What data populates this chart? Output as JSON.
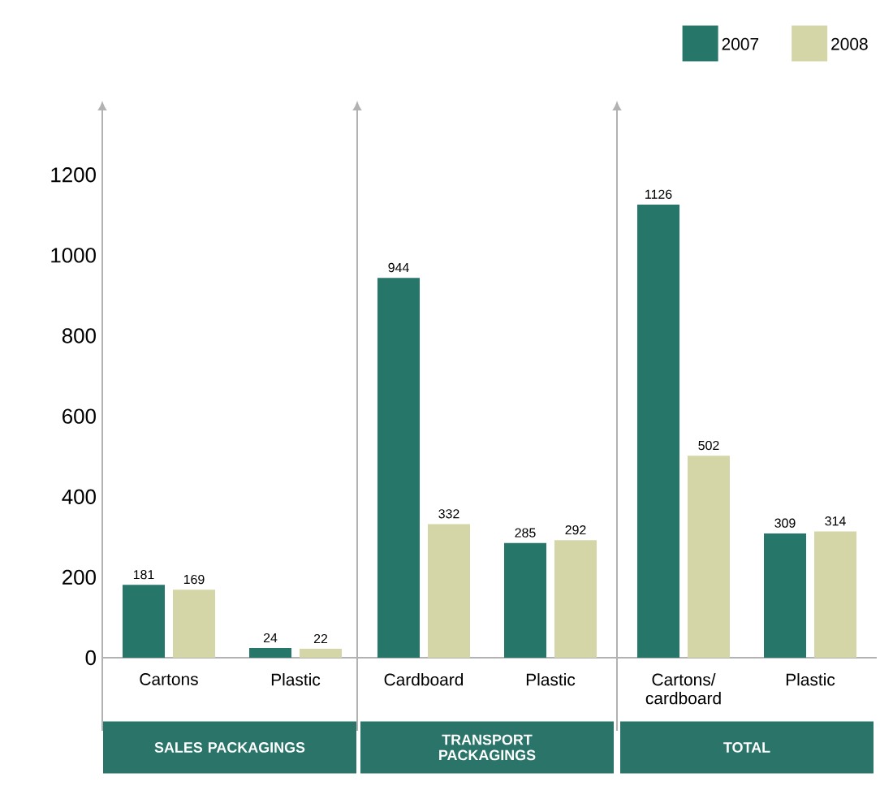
{
  "chart_data": [
    {
      "type": "bar",
      "title": "SALES PACKAGINGS",
      "categories": [
        "Cartons",
        "Plastic"
      ],
      "series": [
        {
          "color": "#26766a",
          "values": [
            181,
            24
          ]
        },
        {
          "color": "#d4d6a7",
          "values": [
            169,
            22
          ]
        }
      ],
      "ylim": [
        0,
        1360
      ],
      "yticks": [
        0,
        200,
        400,
        600,
        800,
        1000,
        1200
      ],
      "data_labels": true
    },
    {
      "type": "bar",
      "title": "TRANSPORT PACKAGINGS",
      "categories": [
        "Cardboard",
        "Plastic"
      ],
      "series": [
        {
          "color": "#26766a",
          "values": [
            944,
            285
          ]
        },
        {
          "color": "#d4d6a7",
          "values": [
            332,
            292
          ]
        }
      ],
      "ylim": [
        0,
        1360
      ],
      "yticks": [
        0,
        200,
        400,
        600,
        800,
        1000,
        1200
      ],
      "tick_labels": "x",
      "data_labels": true
    },
    {
      "type": "bar",
      "title": "TOTAL",
      "categories": [
        "Cartons/ cardboard",
        "Plastic"
      ],
      "series": [
        {
          "name": "2007",
          "color": "#26766a",
          "values": [
            1126,
            309
          ]
        },
        {
          "name": "2008",
          "color": "#d4d6a7",
          "values": [
            502,
            314
          ]
        }
      ],
      "ylim": [
        0,
        1360
      ],
      "yticks": [
        0,
        200,
        400,
        600,
        800,
        1000,
        1200
      ],
      "tick_labels": "x",
      "data_labels": true,
      "legend": "top right"
    }
  ]
}
